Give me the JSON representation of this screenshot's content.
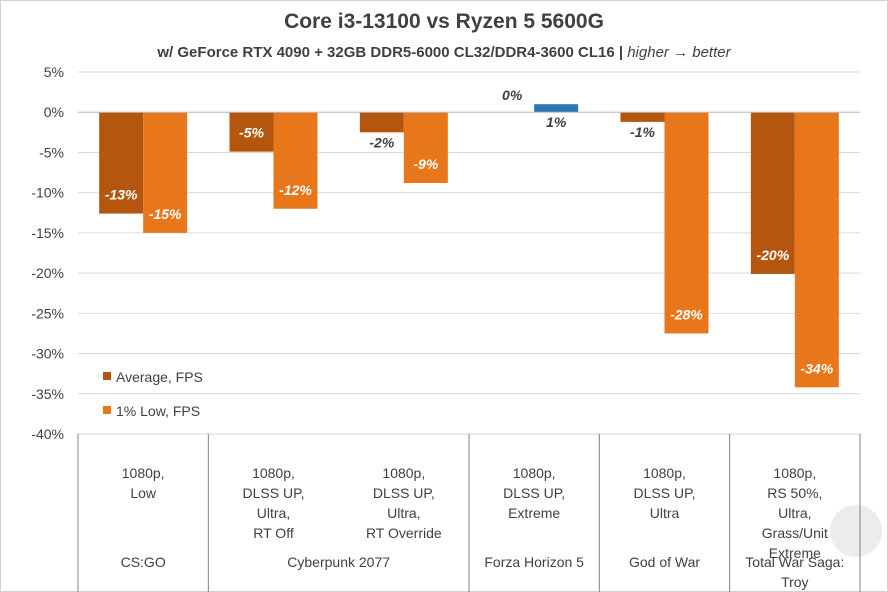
{
  "title": "Core i3-13100 vs Ryzen 5 5600G",
  "subtitle_main": "w/ GeForce RTX 4090 + 32GB DDR5-6000 CL32/DDR4-3600 CL16 | ",
  "subtitle_note": "higher → better",
  "colors": {
    "average": "#b5560e",
    "low": "#e8761a",
    "highlight": "#2e75b6",
    "grid": "#d9d9d9",
    "text": "#404040"
  },
  "chart_data": {
    "type": "bar",
    "title": "Core i3-13100 vs Ryzen 5 5600G",
    "ylim": [
      -40,
      5
    ],
    "yticks": [
      5,
      0,
      -5,
      -10,
      -15,
      -20,
      -25,
      -30,
      -35,
      -40
    ],
    "ytick_labels": [
      "5%",
      "0%",
      "-5%",
      "-10%",
      "-15%",
      "-20%",
      "-25%",
      "-30%",
      "-35%",
      "-40%"
    ],
    "grid": true,
    "legend_position": "bottom-left",
    "categories": [
      [
        "1080p,",
        "Low"
      ],
      [
        "1080p,",
        "DLSS UP,",
        "Ultra,",
        "RT Off"
      ],
      [
        "1080p,",
        "DLSS UP,",
        "Ultra,",
        "RT Override"
      ],
      [
        "1080p,",
        "DLSS UP,",
        "Extreme"
      ],
      [
        "1080p,",
        "DLSS UP,",
        "Ultra"
      ],
      [
        "1080p,",
        "RS 50%,",
        "Ultra,",
        "Grass/Unit",
        "Extreme"
      ]
    ],
    "games": [
      {
        "name": [
          "CS:GO"
        ],
        "span": [
          0,
          0
        ]
      },
      {
        "name": [
          "Cyberpunk 2077"
        ],
        "span": [
          1,
          2
        ]
      },
      {
        "name": [
          "Forza Horizon 5"
        ],
        "span": [
          3,
          3
        ]
      },
      {
        "name": [
          "God of War"
        ],
        "span": [
          4,
          4
        ]
      },
      {
        "name": [
          "Total War Saga:",
          "Troy"
        ],
        "span": [
          5,
          5
        ]
      }
    ],
    "series": [
      {
        "name": "Average, FPS",
        "values": [
          -12.6,
          -4.9,
          -2.5,
          0,
          -1.2,
          -20.1
        ],
        "labels": [
          "-13%",
          "-5%",
          "-2%",
          "0%",
          "-1%",
          "-20%"
        ]
      },
      {
        "name": "1% Low, FPS",
        "values": [
          -15.0,
          -12.0,
          -8.8,
          1.0,
          -27.5,
          -34.2
        ],
        "labels": [
          "-15%",
          "-12%",
          "-9%",
          "1%",
          "-28%",
          "-34%"
        ]
      }
    ]
  }
}
